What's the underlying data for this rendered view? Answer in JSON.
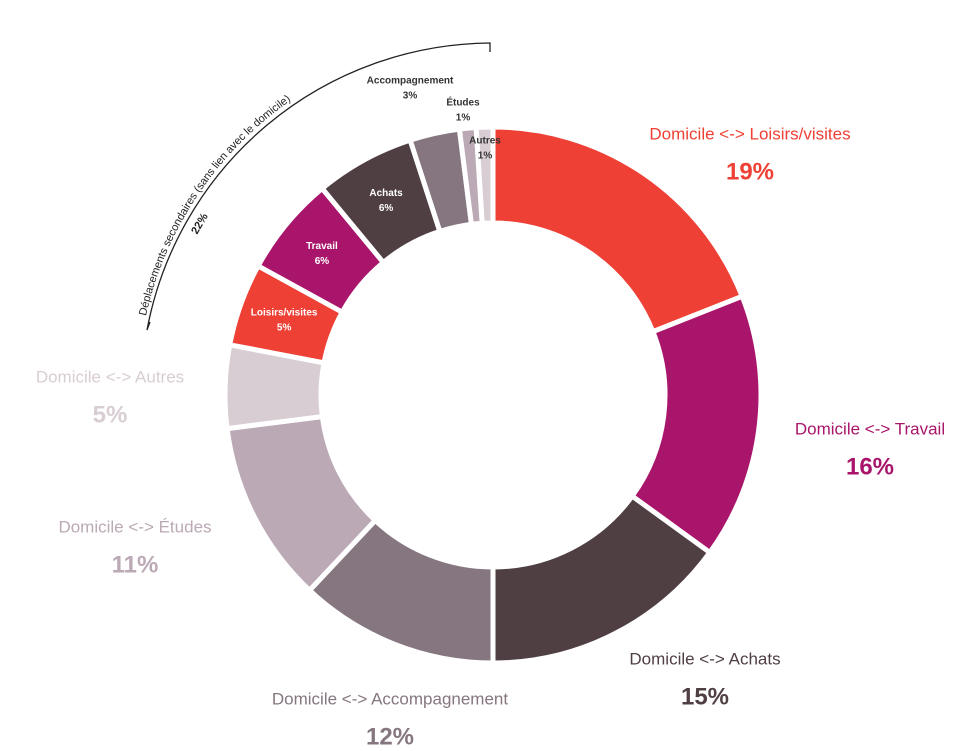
{
  "chart_data": {
    "type": "pie",
    "donut": true,
    "group": {
      "label": "Déplacements secondaires (sans lien avec le domicile)",
      "value": 22,
      "value_label": "22%"
    },
    "categories": [
      "Domicile <-> Loisirs/visites",
      "Domicile <-> Travail",
      "Domicile <-> Achats",
      "Domicile <-> Accompagnement",
      "Domicile <-> Études",
      "Domicile <-> Autres",
      "Loisirs/visites",
      "Travail",
      "Achats",
      "Accompagnement",
      "Études",
      "Autres"
    ],
    "series": [
      {
        "values": [
          19,
          16,
          15,
          12,
          11,
          5,
          5,
          6,
          6,
          3,
          1,
          1
        ],
        "value_labels": [
          "19%",
          "16%",
          "15%",
          "12%",
          "11%",
          "5%",
          "5%",
          "6%",
          "6%",
          "3%",
          "1%",
          "1%"
        ],
        "colors": [
          "#ee4035",
          "#a8156a",
          "#4f3f43",
          "#85767f",
          "#bba9b5",
          "#d9cdd4",
          "#ee4035",
          "#a8156a",
          "#4f3f43",
          "#85767f",
          "#bba9b5",
          "#d9cdd4"
        ]
      }
    ]
  }
}
